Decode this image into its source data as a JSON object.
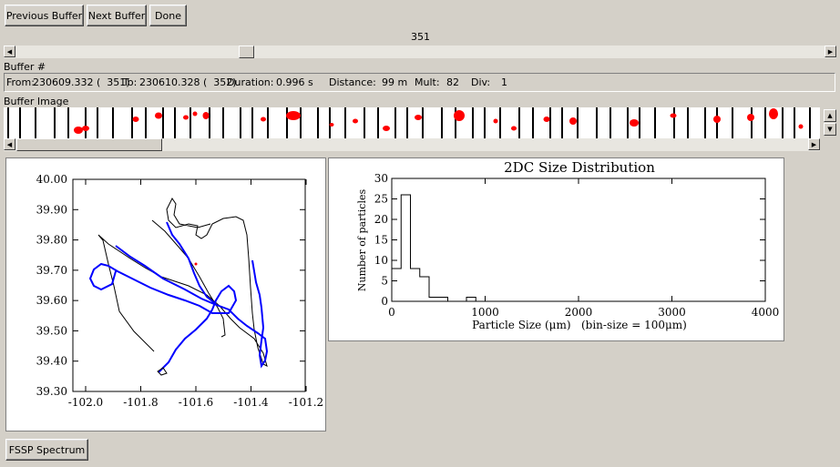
{
  "toolbar": {
    "previous_label": "Previous Buffer",
    "next_label": "Next Buffer",
    "done_label": "Done"
  },
  "buffer_slider": {
    "value": "351",
    "label": "Buffer #"
  },
  "info": {
    "from_label": "From:",
    "from_value": "230609.332 (  351)",
    "to_label": "To:",
    "to_value": "230610.328 (  352)",
    "duration_label": "Duration:",
    "duration_value": "0.996 s",
    "distance_label": "Distance:",
    "distance_value": "99 m",
    "mult_label": "Mult:",
    "mult_value": "82",
    "div_label": "Div:",
    "div_value": "1"
  },
  "buffer_image": {
    "label": "Buffer Image",
    "particle_color": "#ff0000"
  },
  "track_plot": {
    "y_ticks": [
      "40.00",
      "39.90",
      "39.80",
      "39.70",
      "39.60",
      "39.50",
      "39.40",
      "39.30"
    ],
    "x_ticks": [
      "-102.0",
      "-101.8",
      "-101.6",
      "-101.4",
      "-101.2"
    ],
    "track_color": "#000000",
    "highlight_color": "#0000ff"
  },
  "chart_data": {
    "type": "bar",
    "title": "2DC Size Distribution",
    "xlabel": "Particle Size (μm)   (bin-size = 100μm)",
    "ylabel": "Number of particles",
    "xlim": [
      0,
      4000
    ],
    "ylim": [
      0,
      30
    ],
    "x_ticks": [
      0,
      1000,
      2000,
      3000,
      4000
    ],
    "y_ticks": [
      0,
      5,
      10,
      15,
      20,
      25,
      30
    ],
    "bin_size": 100,
    "bins": [
      0,
      100,
      200,
      300,
      400,
      500,
      600,
      700,
      800,
      900
    ],
    "values": [
      8,
      26,
      8,
      6,
      1,
      1,
      0,
      0,
      1,
      0
    ]
  },
  "fssp_button": {
    "label": "FSSP Spectrum"
  }
}
